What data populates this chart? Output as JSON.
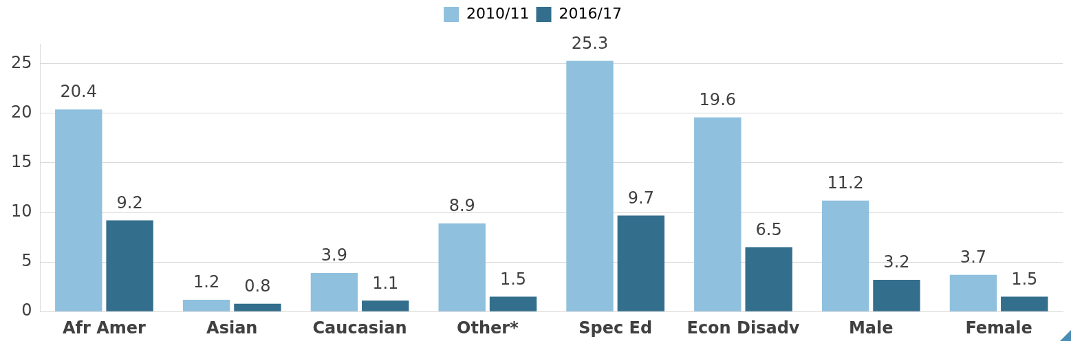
{
  "chart_data": {
    "type": "bar",
    "categories": [
      "Afr Amer",
      "Asian",
      "Caucasian",
      "Other*",
      "Spec Ed",
      "Econ Disadv",
      "Male",
      "Female"
    ],
    "series": [
      {
        "name": "2010/11",
        "color": "#8fc0de",
        "values": [
          20.4,
          1.2,
          3.9,
          8.9,
          25.3,
          19.6,
          11.2,
          3.7
        ]
      },
      {
        "name": "2016/17",
        "color": "#336e8c",
        "values": [
          9.2,
          0.8,
          1.1,
          1.5,
          9.7,
          6.5,
          3.2,
          1.5
        ]
      }
    ],
    "ylim": [
      0,
      27
    ],
    "yticks": [
      0,
      5,
      10,
      15,
      20,
      25
    ],
    "grid": "y",
    "legend": "top",
    "data_labels": true
  }
}
